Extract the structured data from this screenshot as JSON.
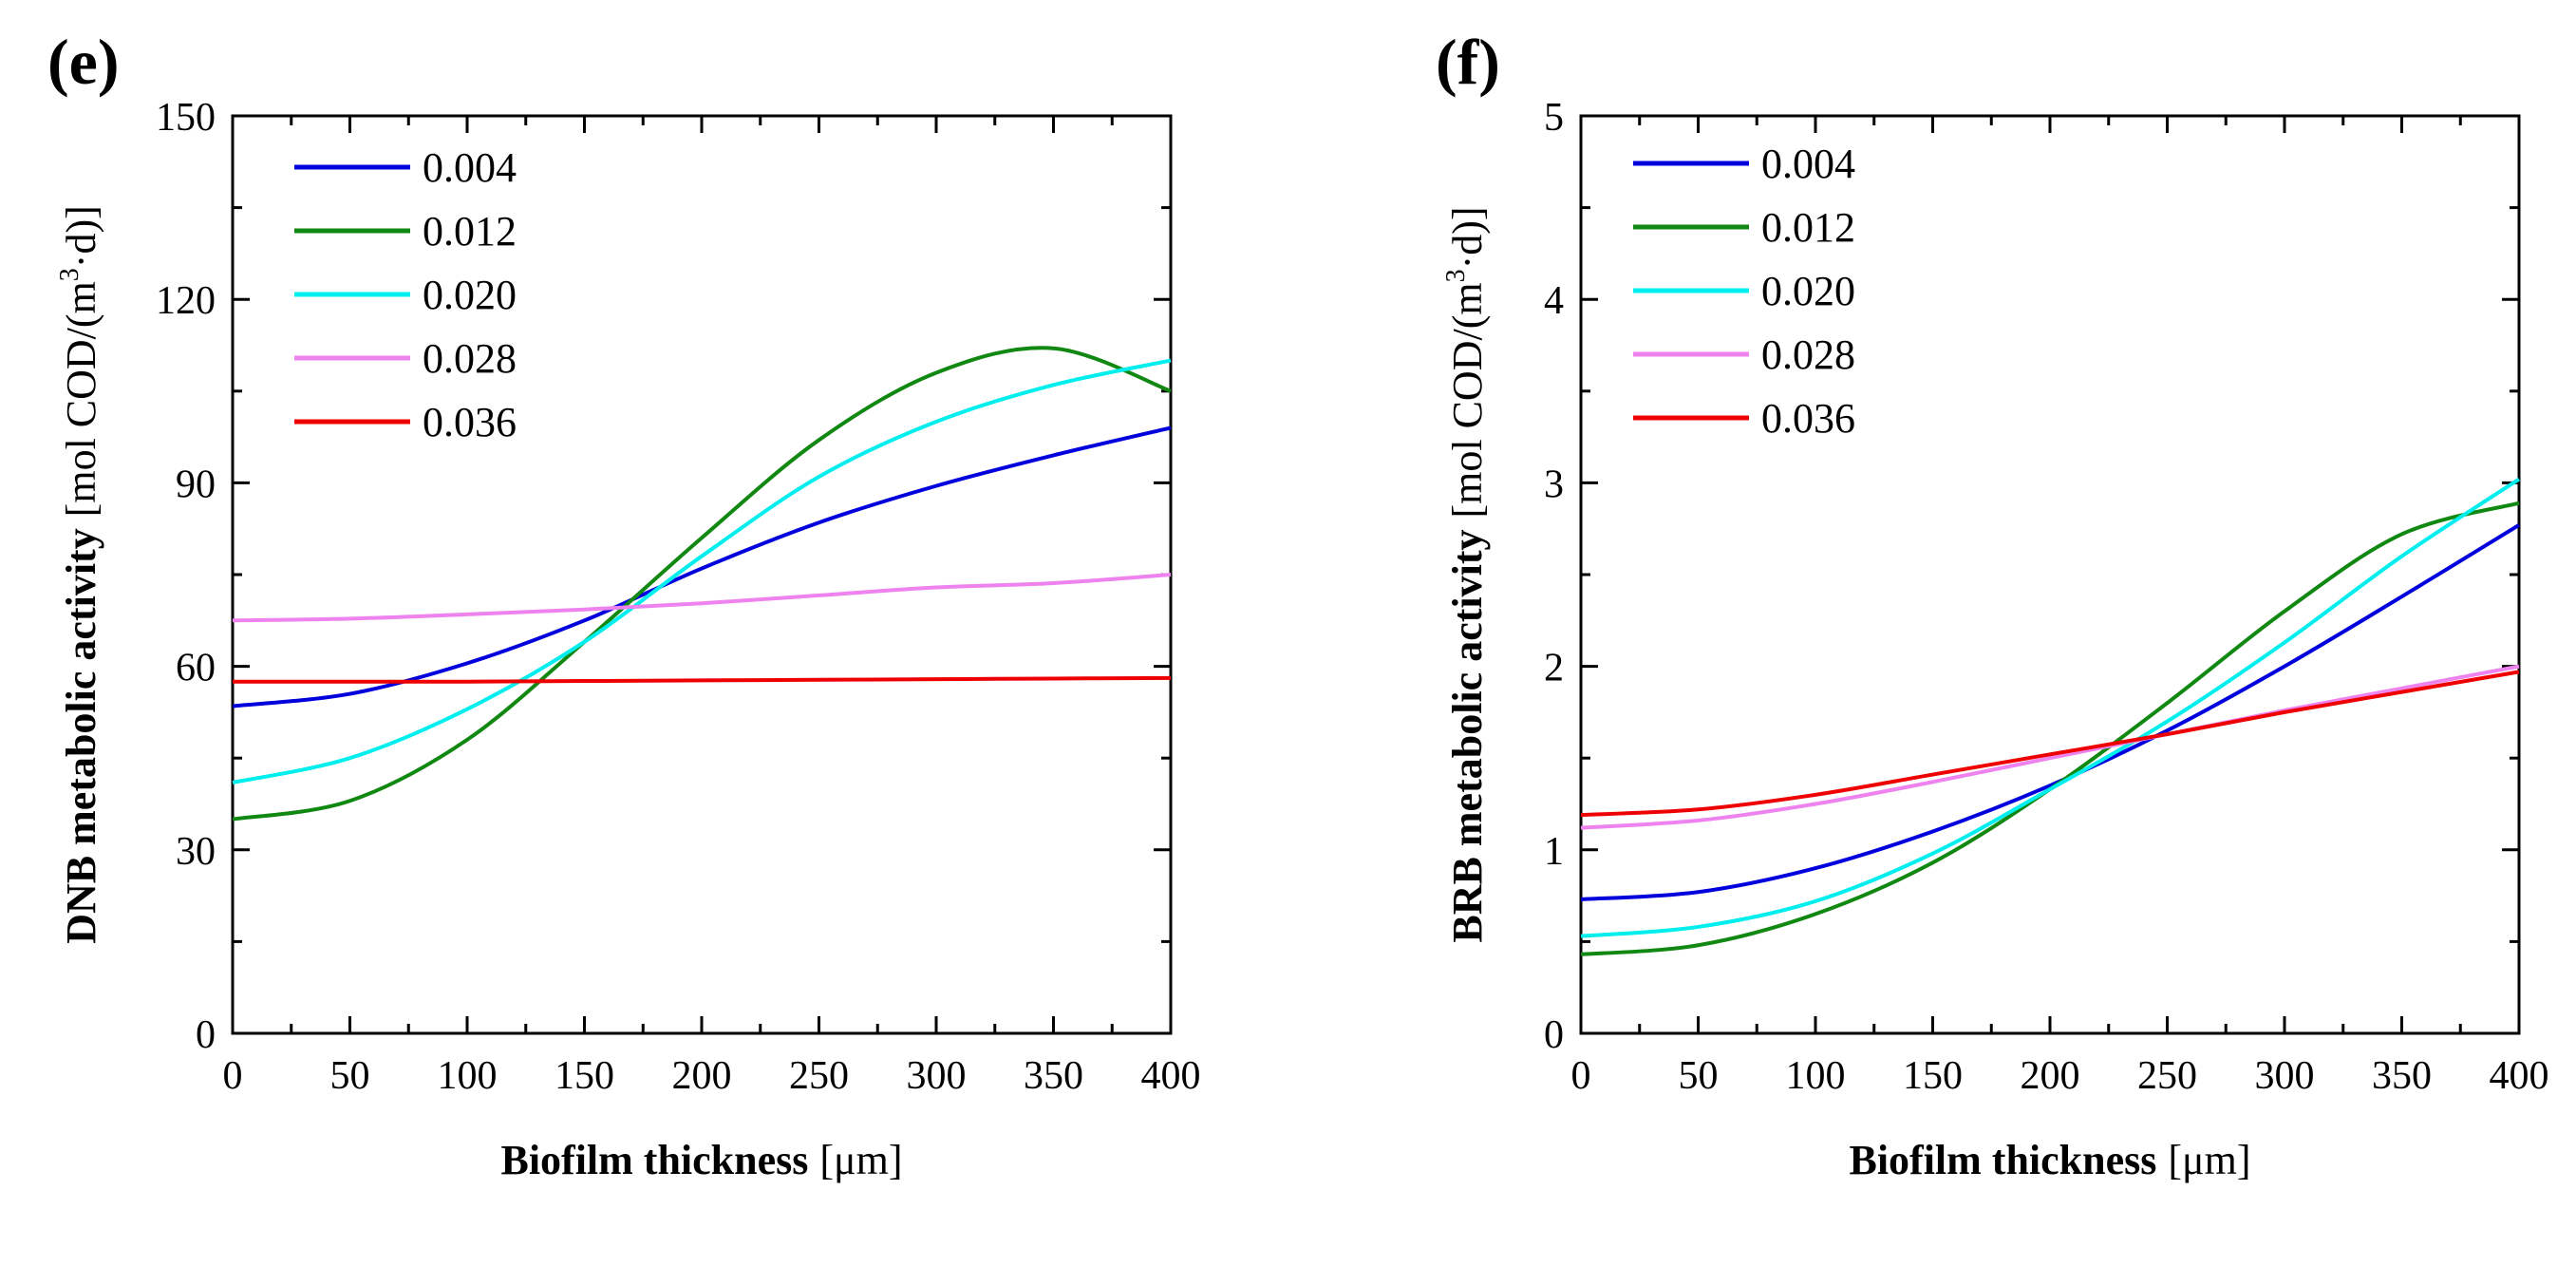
{
  "chart_data": [
    {
      "type": "line",
      "panel_label": "(e)",
      "title": "",
      "xlabel_bold": "Biofilm thickness",
      "xlabel_unit": "[μm]",
      "ylabel_bold": "DNB metabolic activity",
      "ylabel_unit_pre": "[mol COD/(m",
      "ylabel_unit_sup": "3",
      "ylabel_unit_post": "·d)]",
      "xlim": [
        0,
        400
      ],
      "ylim": [
        0,
        150
      ],
      "xticks": [
        0,
        50,
        100,
        150,
        200,
        250,
        300,
        350,
        400
      ],
      "xtick_labels": [
        "0",
        "50",
        "100",
        "150",
        "200",
        "250",
        "300",
        "350",
        "400"
      ],
      "yticks": [
        0,
        30,
        60,
        90,
        120,
        150
      ],
      "ytick_labels": [
        "0",
        "30",
        "60",
        "90",
        "120",
        "150"
      ],
      "legend_position": "top-left",
      "grid": false,
      "x": [
        0,
        50,
        100,
        150,
        200,
        250,
        300,
        350,
        400
      ],
      "series": [
        {
          "name": "0.004",
          "color": "#0000dd",
          "values": [
            53.5,
            55.5,
            60.5,
            67.5,
            76,
            83.5,
            89.5,
            94.5,
            99
          ]
        },
        {
          "name": "0.012",
          "color": "#118811",
          "values": [
            35,
            38,
            48,
            64,
            81,
            97,
            108,
            112,
            105
          ]
        },
        {
          "name": "0.020",
          "color": "#00eeee",
          "values": [
            41,
            45,
            53,
            64,
            78,
            91,
            100,
            106,
            110
          ]
        },
        {
          "name": "0.028",
          "color": "#ee82ee",
          "values": [
            67.5,
            67.8,
            68.5,
            69.3,
            70.3,
            71.6,
            72.9,
            73.6,
            75
          ]
        },
        {
          "name": "0.036",
          "color": "#ee0000",
          "values": [
            57.5,
            57.5,
            57.5,
            57.6,
            57.7,
            57.8,
            57.9,
            58,
            58.1
          ]
        }
      ]
    },
    {
      "type": "line",
      "panel_label": "(f)",
      "title": "",
      "xlabel_bold": "Biofilm thickness",
      "xlabel_unit": "[μm]",
      "ylabel_bold": "BRB metabolic activity",
      "ylabel_unit_pre": "[mol COD/(m",
      "ylabel_unit_sup": "3",
      "ylabel_unit_post": "·d)]",
      "xlim": [
        0,
        400
      ],
      "ylim": [
        0,
        5
      ],
      "xticks": [
        0,
        50,
        100,
        150,
        200,
        250,
        300,
        350,
        400
      ],
      "xtick_labels": [
        "0",
        "50",
        "100",
        "150",
        "200",
        "250",
        "300",
        "350",
        "400"
      ],
      "yticks": [
        0,
        1,
        2,
        3,
        4,
        5
      ],
      "ytick_labels": [
        "0",
        "1",
        "2",
        "3",
        "4",
        "5"
      ],
      "legend_position": "top-left",
      "grid": false,
      "x": [
        0,
        50,
        100,
        150,
        200,
        250,
        300,
        350,
        400
      ],
      "series": [
        {
          "name": "0.004",
          "color": "#0000dd",
          "values": [
            0.73,
            0.77,
            0.9,
            1.1,
            1.35,
            1.65,
            2.0,
            2.38,
            2.77
          ]
        },
        {
          "name": "0.012",
          "color": "#118811",
          "values": [
            0.43,
            0.48,
            0.65,
            0.93,
            1.33,
            1.8,
            2.3,
            2.72,
            2.89
          ]
        },
        {
          "name": "0.020",
          "color": "#00eeee",
          "values": [
            0.53,
            0.58,
            0.72,
            0.98,
            1.33,
            1.7,
            2.13,
            2.6,
            3.02
          ]
        },
        {
          "name": "0.028",
          "color": "#ee82ee",
          "values": [
            1.12,
            1.16,
            1.25,
            1.37,
            1.5,
            1.63,
            1.76,
            1.88,
            2.0
          ]
        },
        {
          "name": "0.036",
          "color": "#ee0000",
          "values": [
            1.19,
            1.22,
            1.3,
            1.41,
            1.52,
            1.63,
            1.75,
            1.86,
            1.97
          ]
        }
      ]
    }
  ]
}
